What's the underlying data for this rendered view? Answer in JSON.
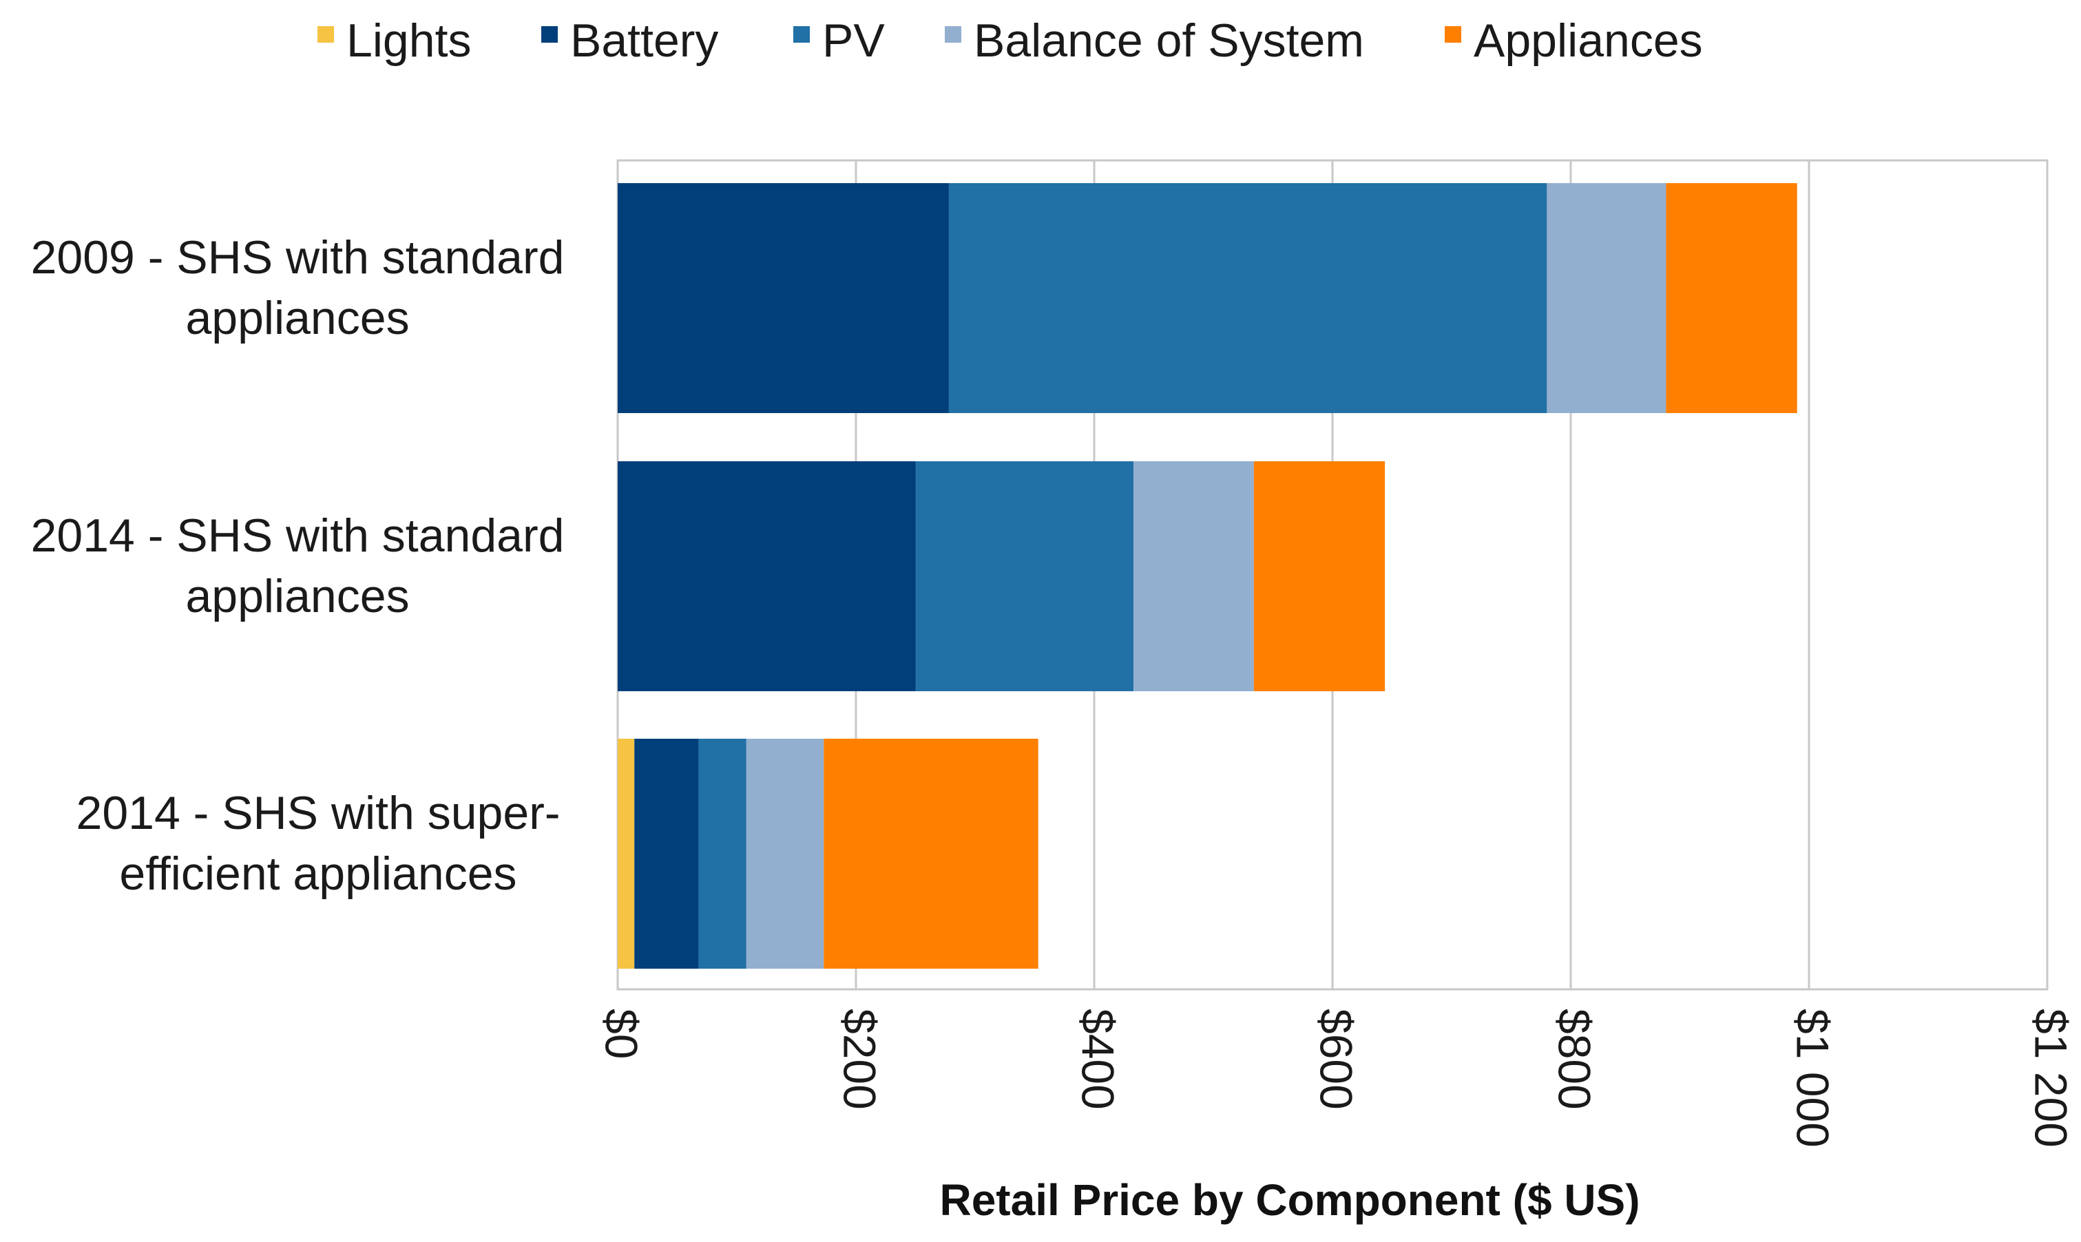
{
  "chart_data": {
    "type": "bar",
    "orientation": "horizontal",
    "stacked": true,
    "title": "",
    "xlabel": "Retail Price by Component ($ US)",
    "ylabel": "",
    "xlim": [
      0,
      1200
    ],
    "x_ticks": [
      0,
      200,
      400,
      600,
      800,
      1000,
      1200
    ],
    "x_tick_labels": [
      "$0",
      "$200",
      "$400",
      "$600",
      "$800",
      "$1 000",
      "$1 200"
    ],
    "grid": true,
    "legend_position": "top",
    "categories": [
      "2009 - SHS with standard appliances",
      "2014 - SHS with standard appliances",
      "2014 - SHS with super-efficient appliances"
    ],
    "category_label_lines": [
      [
        "2009 - SHS with standard",
        "appliances"
      ],
      [
        "2014 - SHS with standard",
        "appliances"
      ],
      [
        "2014 - SHS with super-",
        "efficient appliances"
      ]
    ],
    "series": [
      {
        "name": "Lights",
        "color": "#F6C342",
        "values": [
          0,
          0,
          14
        ]
      },
      {
        "name": "Battery",
        "color": "#003F7A",
        "values": [
          278,
          250,
          54
        ]
      },
      {
        "name": "PV",
        "color": "#2170A6",
        "values": [
          502,
          183,
          40
        ]
      },
      {
        "name": "Balance of System",
        "color": "#92AFD0",
        "values": [
          100,
          101,
          65
        ]
      },
      {
        "name": "Appliances",
        "color": "#FF8000",
        "values": [
          110,
          110,
          180
        ]
      }
    ]
  }
}
